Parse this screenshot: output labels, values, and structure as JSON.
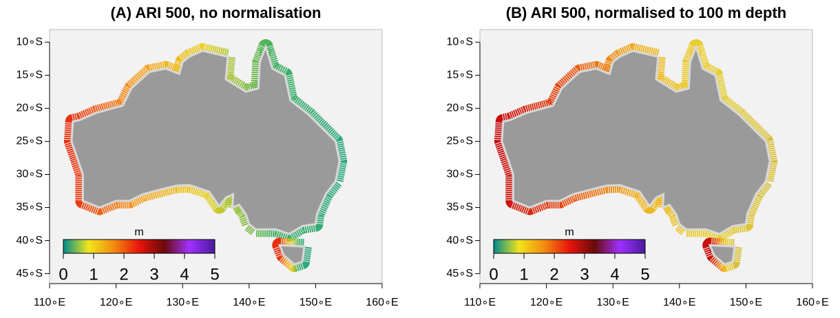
{
  "chart_data": [
    {
      "type": "map",
      "title": "(A) ARI 500, no normalisation",
      "xlim": [
        110,
        160
      ],
      "ylim": [
        -46.5,
        -8.1
      ],
      "xticks": [
        {
          "value": 110,
          "label": "110∘E"
        },
        {
          "value": 120,
          "label": "120∘E"
        },
        {
          "value": 130,
          "label": "130∘E"
        },
        {
          "value": 140,
          "label": "140∘E"
        },
        {
          "value": 150,
          "label": "150∘E"
        },
        {
          "value": 160,
          "label": "160∘E"
        }
      ],
      "yticks": [
        {
          "value": -10,
          "label": "10∘S"
        },
        {
          "value": -15,
          "label": "15∘S"
        },
        {
          "value": -20,
          "label": "20∘S"
        },
        {
          "value": -25,
          "label": "25∘S"
        },
        {
          "value": -30,
          "label": "30∘S"
        },
        {
          "value": -35,
          "label": "35∘S"
        },
        {
          "value": -40,
          "label": "40∘S"
        },
        {
          "value": -45,
          "label": "45∘S"
        }
      ],
      "colorbar": {
        "label": "m",
        "lim": [
          0,
          5
        ],
        "ticks": [
          0,
          1,
          2,
          3,
          4,
          5
        ],
        "colors": [
          "#008b8b",
          "#f2e41c",
          "#f28c0f",
          "#e8140c",
          "#6a0a0a",
          "#a030ff",
          "#4b1a9e"
        ]
      },
      "coast_colors": [
        "#e83010",
        "#f4a020",
        "#e8d020",
        "#40b060",
        "#30a880"
      ]
    },
    {
      "type": "map",
      "title": "(B) ARI 500, normalised to 100 m depth",
      "xlim": [
        110,
        160
      ],
      "ylim": [
        -46.5,
        -8.1
      ],
      "xticks": [
        {
          "value": 110,
          "label": "110∘E"
        },
        {
          "value": 120,
          "label": "120∘E"
        },
        {
          "value": 130,
          "label": "130∘E"
        },
        {
          "value": 140,
          "label": "140∘E"
        },
        {
          "value": 150,
          "label": "150∘E"
        },
        {
          "value": 160,
          "label": "160∘E"
        }
      ],
      "yticks": [
        {
          "value": -10,
          "label": "10∘S"
        },
        {
          "value": -15,
          "label": "15∘S"
        },
        {
          "value": -20,
          "label": "20∘S"
        },
        {
          "value": -25,
          "label": "25∘S"
        },
        {
          "value": -30,
          "label": "30∘S"
        },
        {
          "value": -35,
          "label": "35∘S"
        },
        {
          "value": -40,
          "label": "40∘S"
        },
        {
          "value": -45,
          "label": "45∘S"
        }
      ],
      "colorbar": {
        "label": "m",
        "lim": [
          0,
          5
        ],
        "ticks": [
          0,
          1,
          2,
          3,
          4,
          5
        ],
        "colors": [
          "#008b8b",
          "#f2e41c",
          "#f28c0f",
          "#e8140c",
          "#6a0a0a",
          "#a030ff",
          "#4b1a9e"
        ]
      },
      "coast_colors": [
        "#c81010",
        "#e85010",
        "#f0b020",
        "#e8d030",
        "#d8c040"
      ]
    }
  ]
}
